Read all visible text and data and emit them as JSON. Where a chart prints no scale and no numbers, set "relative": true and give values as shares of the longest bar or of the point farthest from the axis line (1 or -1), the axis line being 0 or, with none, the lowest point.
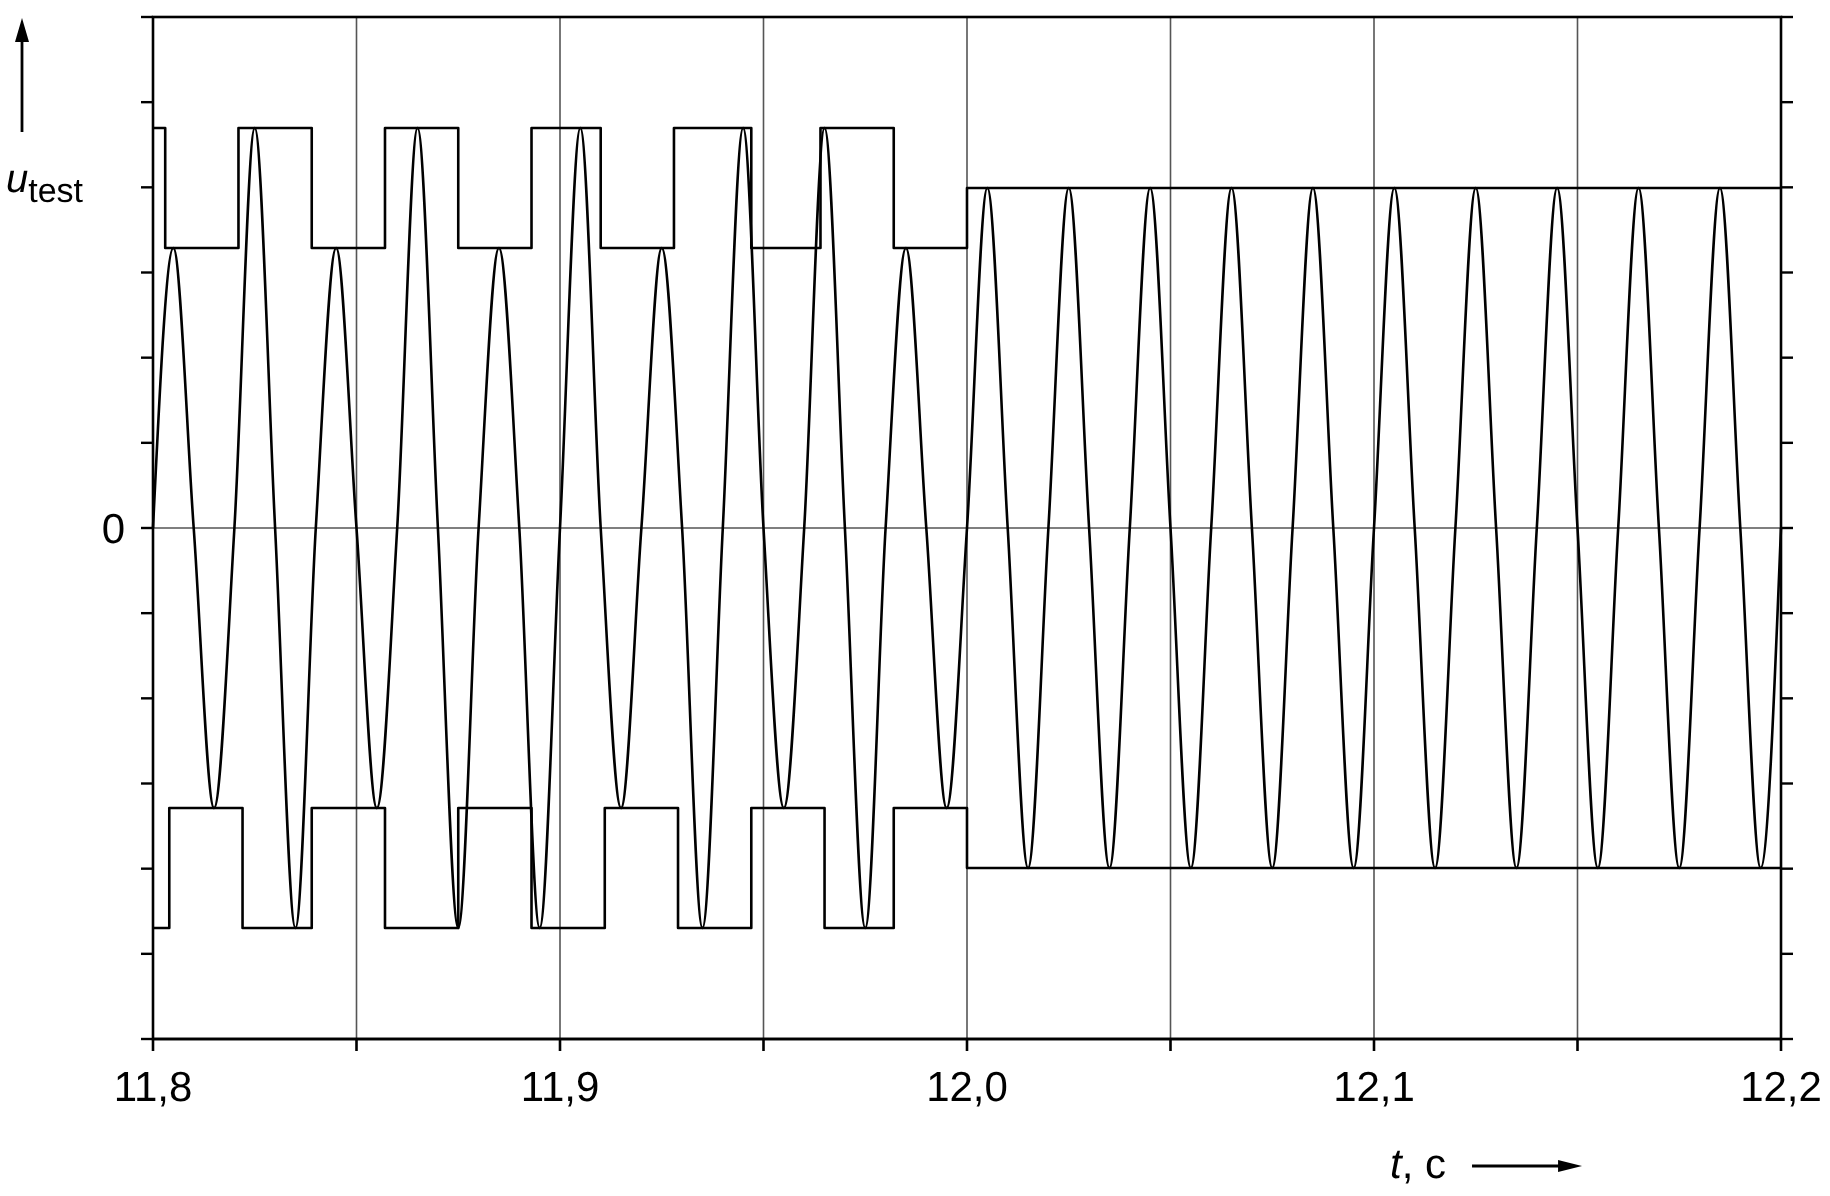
{
  "chart_data": {
    "type": "line",
    "xlabel": "t, c",
    "ylabel": "u$_{test}$",
    "relative": true,
    "xlim": [
      11.8,
      12.2
    ],
    "xticks": [
      {
        "value": 11.8,
        "label": "11,8"
      },
      {
        "value": 11.85,
        "label": null
      },
      {
        "value": 11.9,
        "label": "11,9"
      },
      {
        "value": 11.95,
        "label": null
      },
      {
        "value": 12.0,
        "label": "12,0"
      },
      {
        "value": 12.05,
        "label": null
      },
      {
        "value": 12.1,
        "label": "12,1"
      },
      {
        "value": 12.15,
        "label": null
      },
      {
        "value": 12.2,
        "label": "12,2"
      }
    ],
    "grid": "x",
    "ref_lines": [
      {
        "axis": "y",
        "value": 0,
        "label": "0"
      }
    ],
    "series": [
      {
        "type": "step",
        "color": "#000000",
        "x": [
          11.8,
          11.803,
          11.821,
          11.839,
          11.857,
          11.875,
          11.893,
          11.91,
          11.928,
          11.947,
          11.964,
          11.982,
          12.0,
          12.2
        ],
        "values": [
          1,
          0.7,
          1,
          0.7,
          1,
          0.7,
          1,
          0.7,
          1,
          0.7,
          1,
          0.7,
          0.85,
          0.85
        ]
      },
      {
        "type": "step",
        "color": "#000000",
        "x": [
          11.8,
          11.804,
          11.822,
          11.839,
          11.857,
          11.875,
          11.893,
          11.911,
          11.929,
          11.947,
          11.965,
          11.982,
          12.0,
          12.2
        ],
        "values": [
          -1,
          -0.7,
          -1,
          -0.7,
          -1,
          -0.7,
          -1,
          -0.7,
          -1,
          -0.7,
          -1,
          -0.7,
          -0.85,
          -0.85
        ]
      },
      {
        "type": "line",
        "color": "#000000",
        "x": [
          11.8,
          11.805,
          11.81,
          11.815,
          11.82,
          11.825,
          11.83,
          11.835,
          11.84,
          11.845,
          11.85,
          11.855,
          11.86,
          11.865,
          11.87,
          11.875,
          11.88,
          11.885,
          11.89,
          11.895,
          11.9,
          11.905,
          11.91,
          11.915,
          11.92,
          11.925,
          11.93,
          11.935,
          11.94,
          11.945,
          11.95,
          11.955,
          11.96,
          11.965,
          11.97,
          11.975,
          11.98,
          11.985,
          11.99,
          11.995,
          12.0,
          12.005,
          12.01,
          12.015,
          12.02,
          12.025,
          12.03,
          12.035,
          12.04,
          12.045,
          12.05,
          12.055,
          12.06,
          12.065,
          12.07,
          12.075,
          12.08,
          12.085,
          12.09,
          12.095,
          12.1,
          12.105,
          12.11,
          12.115,
          12.12,
          12.125,
          12.13,
          12.135,
          12.14,
          12.145,
          12.15,
          12.155,
          12.16,
          12.165,
          12.17,
          12.175,
          12.18,
          12.185,
          12.19,
          12.195,
          12.2
        ],
        "values": [
          0,
          0.7,
          0,
          -0.7,
          0,
          1,
          0,
          -1,
          0,
          0.7,
          0,
          -0.7,
          0,
          1,
          0,
          -1,
          0,
          0.7,
          0,
          -1,
          0,
          1,
          0,
          -0.7,
          0,
          0.7,
          0,
          -1,
          0,
          1,
          0,
          -0.7,
          0,
          1,
          0,
          -1,
          0,
          0.7,
          0,
          -0.7,
          0,
          0.85,
          0,
          -0.85,
          0,
          0.85,
          0,
          -0.85,
          0,
          0.85,
          0,
          -0.85,
          0,
          0.85,
          0,
          -0.85,
          0,
          0.85,
          0,
          -0.85,
          0,
          0.85,
          0,
          -0.85,
          0,
          0.85,
          0,
          -0.85,
          0,
          0.85,
          0,
          -0.85,
          0,
          0.85,
          0,
          -0.85,
          0,
          0.85,
          0,
          -0.85,
          0
        ]
      }
    ]
  }
}
